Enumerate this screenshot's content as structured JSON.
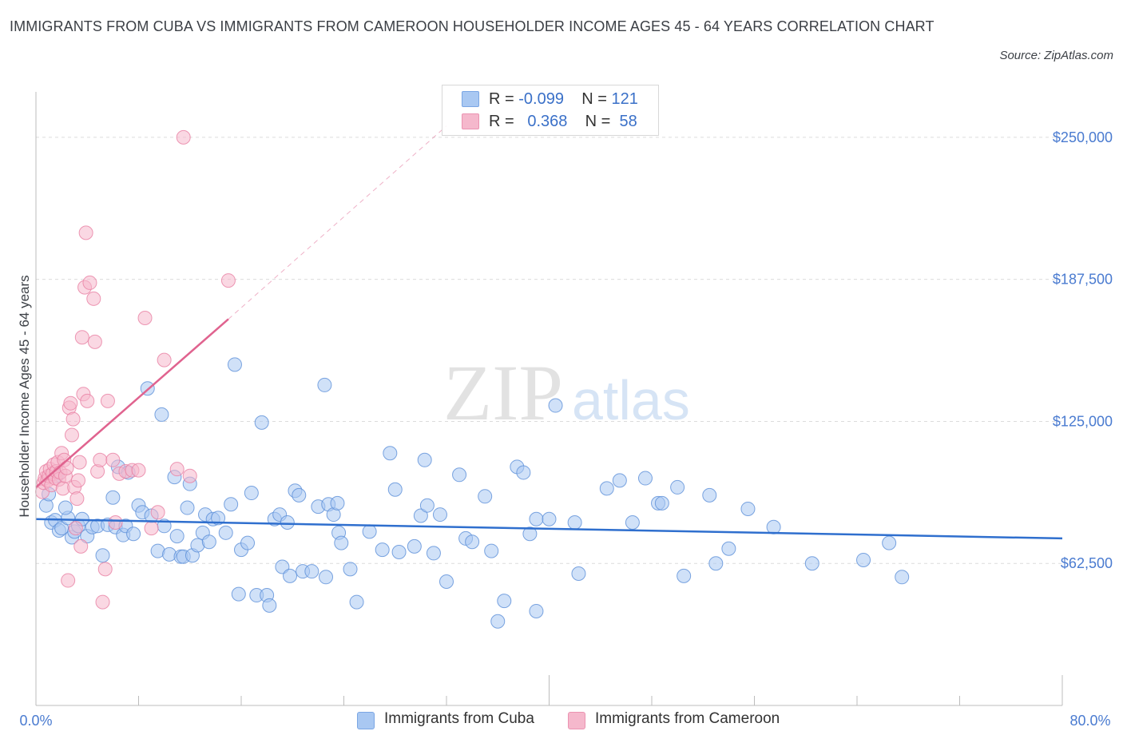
{
  "title": "IMMIGRANTS FROM CUBA VS IMMIGRANTS FROM CAMEROON HOUSEHOLDER INCOME AGES 45 - 64 YEARS CORRELATION CHART",
  "source": "Source: ZipAtlas.com",
  "watermark": {
    "zip": "ZIP",
    "atlas": "atlas"
  },
  "legend": {
    "rows": [
      {
        "r_label": "R =",
        "r_value": "-0.099",
        "n_label": "N =",
        "n_value": "121",
        "color": "#a9c8f2"
      },
      {
        "r_label": "R =",
        "r_value": "0.368",
        "n_label": "N =",
        "n_value": "58",
        "color": "#f5b8cc"
      }
    ]
  },
  "bottom_legend": [
    {
      "label": "Immigrants from Cuba",
      "color": "#a9c8f2"
    },
    {
      "label": "Immigrants from Cameroon",
      "color": "#f5b8cc"
    }
  ],
  "colors": {
    "cuba_fill": "#a9c8f2",
    "cuba_stroke": "#5b8fd8",
    "cuba_line": "#2f6fce",
    "cam_fill": "#f5b8cc",
    "cam_stroke": "#e87fa3",
    "cam_line": "#e0638f",
    "grid": "#dcdcdc",
    "tick_label": "#4a7bd0"
  },
  "chart_data": {
    "type": "scatter",
    "ylabel": "Householder Income Ages 45 - 64 years",
    "xlim": [
      0,
      80
    ],
    "ylim": [
      0,
      270000
    ],
    "x_tick_labels": [
      "0.0%",
      "80.0%"
    ],
    "y_ticks": [
      {
        "value": 62500,
        "label": "$62,500"
      },
      {
        "value": 125000,
        "label": "$125,000"
      },
      {
        "value": 187500,
        "label": "$187,500"
      },
      {
        "value": 250000,
        "label": "$250,000"
      }
    ],
    "series": [
      {
        "name": "Immigrants from Cuba",
        "trend": {
          "x": [
            0,
            80
          ],
          "y": [
            82000,
            73500
          ]
        },
        "points": [
          [
            0.8,
            88000
          ],
          [
            1.2,
            80500
          ],
          [
            1.5,
            81500
          ],
          [
            1.8,
            77000
          ],
          [
            2.0,
            78000
          ],
          [
            2.5,
            82500
          ],
          [
            2.8,
            74000
          ],
          [
            3.0,
            76500
          ],
          [
            3.3,
            79000
          ],
          [
            3.6,
            82000
          ],
          [
            4.0,
            74500
          ],
          [
            4.4,
            78500
          ],
          [
            4.8,
            79000
          ],
          [
            5.2,
            66000
          ],
          [
            5.6,
            79500
          ],
          [
            6.0,
            91500
          ],
          [
            6.2,
            78500
          ],
          [
            6.4,
            105000
          ],
          [
            6.8,
            75000
          ],
          [
            7.0,
            79000
          ],
          [
            7.2,
            102500
          ],
          [
            7.6,
            75500
          ],
          [
            8.0,
            88000
          ],
          [
            8.3,
            85000
          ],
          [
            8.7,
            139500
          ],
          [
            9.0,
            83500
          ],
          [
            9.5,
            68000
          ],
          [
            9.8,
            128000
          ],
          [
            10.0,
            79000
          ],
          [
            10.4,
            66500
          ],
          [
            10.8,
            100500
          ],
          [
            11.0,
            74500
          ],
          [
            11.3,
            65500
          ],
          [
            11.5,
            65500
          ],
          [
            11.8,
            87000
          ],
          [
            12.0,
            97500
          ],
          [
            12.2,
            66000
          ],
          [
            12.6,
            70500
          ],
          [
            13.0,
            76000
          ],
          [
            13.2,
            84000
          ],
          [
            13.5,
            72000
          ],
          [
            13.8,
            82000
          ],
          [
            14.2,
            82500
          ],
          [
            14.8,
            76000
          ],
          [
            15.2,
            88500
          ],
          [
            15.5,
            150000
          ],
          [
            15.8,
            49000
          ],
          [
            16.0,
            68500
          ],
          [
            16.5,
            71500
          ],
          [
            16.8,
            93500
          ],
          [
            17.2,
            48500
          ],
          [
            17.6,
            124500
          ],
          [
            18.0,
            48500
          ],
          [
            18.2,
            44000
          ],
          [
            18.6,
            82000
          ],
          [
            19.0,
            84000
          ],
          [
            19.2,
            61000
          ],
          [
            19.6,
            80500
          ],
          [
            19.8,
            57000
          ],
          [
            20.2,
            94500
          ],
          [
            20.5,
            92500
          ],
          [
            20.8,
            59000
          ],
          [
            21.5,
            59000
          ],
          [
            22.0,
            87500
          ],
          [
            22.5,
            141000
          ],
          [
            22.6,
            56500
          ],
          [
            22.8,
            88500
          ],
          [
            23.2,
            84000
          ],
          [
            23.5,
            89000
          ],
          [
            23.6,
            76000
          ],
          [
            23.8,
            71500
          ],
          [
            24.5,
            60000
          ],
          [
            25.0,
            45500
          ],
          [
            26.0,
            76500
          ],
          [
            27.0,
            68500
          ],
          [
            27.6,
            111000
          ],
          [
            28.0,
            95000
          ],
          [
            28.3,
            67500
          ],
          [
            29.5,
            70000
          ],
          [
            30.0,
            83500
          ],
          [
            30.3,
            108000
          ],
          [
            30.5,
            88000
          ],
          [
            31.0,
            67000
          ],
          [
            31.5,
            84000
          ],
          [
            32.0,
            54500
          ],
          [
            33.0,
            101500
          ],
          [
            33.5,
            73500
          ],
          [
            34.0,
            72000
          ],
          [
            35.0,
            92000
          ],
          [
            35.5,
            68000
          ],
          [
            36.0,
            37000
          ],
          [
            36.5,
            46000
          ],
          [
            37.5,
            105000
          ],
          [
            38.0,
            102500
          ],
          [
            38.5,
            75500
          ],
          [
            39.0,
            82000
          ],
          [
            39.0,
            41500
          ],
          [
            40.0,
            82000
          ],
          [
            40.5,
            132000
          ],
          [
            42.0,
            80500
          ],
          [
            42.3,
            58000
          ],
          [
            44.5,
            95500
          ],
          [
            45.5,
            99000
          ],
          [
            46.5,
            80500
          ],
          [
            47.5,
            100000
          ],
          [
            48.5,
            89000
          ],
          [
            48.8,
            89000
          ],
          [
            50.0,
            96000
          ],
          [
            50.5,
            57000
          ],
          [
            52.5,
            92500
          ],
          [
            53.0,
            62500
          ],
          [
            54.0,
            69000
          ],
          [
            55.5,
            86500
          ],
          [
            57.5,
            78500
          ],
          [
            60.5,
            62500
          ],
          [
            64.5,
            64000
          ],
          [
            66.5,
            71500
          ],
          [
            67.5,
            56500
          ],
          [
            1.0,
            93000
          ],
          [
            1.6,
            101000
          ],
          [
            2.3,
            87000
          ]
        ]
      },
      {
        "name": "Immigrants from Cameroon",
        "trend": {
          "x": [
            0,
            15
          ],
          "y": [
            96000,
            170000
          ]
        },
        "trend_ext": {
          "x": [
            15,
            32
          ],
          "y": [
            170000,
            255000
          ]
        },
        "points": [
          [
            0.5,
            94000
          ],
          [
            0.6,
            98000
          ],
          [
            0.7,
            100000
          ],
          [
            0.8,
            103000
          ],
          [
            0.9,
            99000
          ],
          [
            1.0,
            101000
          ],
          [
            1.1,
            104000
          ],
          [
            1.2,
            97000
          ],
          [
            1.3,
            102000
          ],
          [
            1.4,
            106000
          ],
          [
            1.5,
            100000
          ],
          [
            1.6,
            103000
          ],
          [
            1.7,
            107000
          ],
          [
            1.8,
            99500
          ],
          [
            1.9,
            102500
          ],
          [
            2.0,
            111000
          ],
          [
            2.1,
            95500
          ],
          [
            2.2,
            108000
          ],
          [
            2.3,
            101000
          ],
          [
            2.4,
            104500
          ],
          [
            2.5,
            55000
          ],
          [
            2.6,
            131000
          ],
          [
            2.7,
            133000
          ],
          [
            2.8,
            119000
          ],
          [
            2.9,
            126000
          ],
          [
            3.0,
            96000
          ],
          [
            3.1,
            78000
          ],
          [
            3.2,
            91000
          ],
          [
            3.3,
            99000
          ],
          [
            3.4,
            107000
          ],
          [
            3.5,
            70000
          ],
          [
            3.6,
            162000
          ],
          [
            3.7,
            137000
          ],
          [
            3.8,
            184000
          ],
          [
            3.9,
            208000
          ],
          [
            4.0,
            134000
          ],
          [
            4.2,
            186000
          ],
          [
            4.5,
            179000
          ],
          [
            4.6,
            160000
          ],
          [
            4.8,
            103000
          ],
          [
            5.0,
            108000
          ],
          [
            5.2,
            45500
          ],
          [
            5.4,
            60000
          ],
          [
            5.6,
            134000
          ],
          [
            6.0,
            108000
          ],
          [
            6.2,
            80500
          ],
          [
            6.5,
            102000
          ],
          [
            7.0,
            103000
          ],
          [
            7.5,
            103500
          ],
          [
            8.0,
            103500
          ],
          [
            8.5,
            170500
          ],
          [
            9.0,
            78000
          ],
          [
            9.5,
            85000
          ],
          [
            10.0,
            152000
          ],
          [
            11.0,
            104000
          ],
          [
            11.5,
            250000
          ],
          [
            12.0,
            101000
          ],
          [
            15.0,
            187000
          ]
        ]
      }
    ]
  }
}
